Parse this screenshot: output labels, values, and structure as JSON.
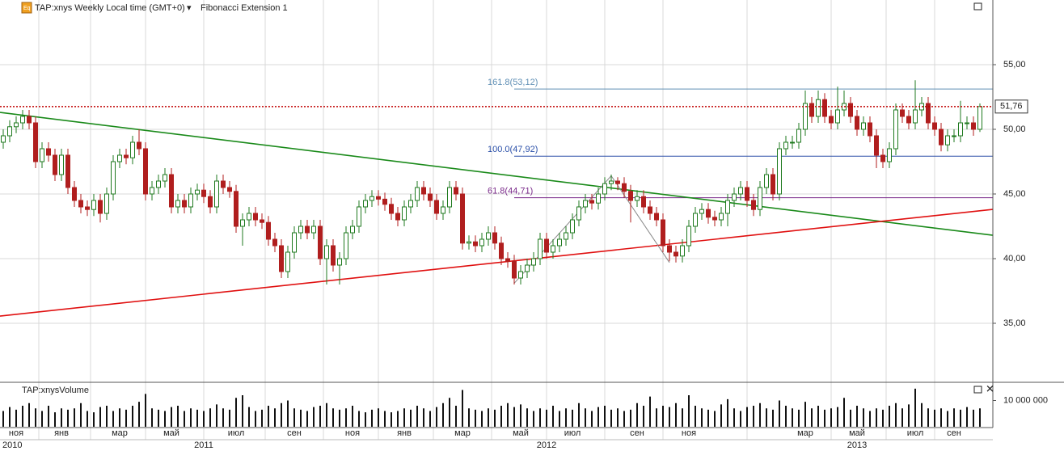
{
  "chart_data": {
    "type": "candlestick",
    "title": "TAP:xnys Weekly Local time (GMT+0)",
    "indicator": "Fibonacci Extension 1",
    "categories": [
      null,
      null,
      "ноя",
      null,
      null,
      null,
      null,
      null,
      null,
      "янв",
      null,
      null,
      null,
      null,
      null,
      null,
      null,
      null,
      "мар",
      null,
      null,
      null,
      null,
      null,
      null,
      null,
      "май",
      null,
      null,
      null,
      null,
      null,
      null,
      null,
      null,
      null,
      "июл",
      null,
      null,
      null,
      null,
      null,
      null,
      null,
      null,
      "сен",
      null,
      null,
      null,
      null,
      null,
      null,
      null,
      null,
      "ноя",
      null,
      null,
      null,
      null,
      null,
      null,
      null,
      "янв",
      null,
      null,
      null,
      null,
      null,
      null,
      null,
      null,
      "мар",
      null,
      null,
      null,
      null,
      null,
      null,
      null,
      null,
      "май",
      null,
      null,
      null,
      null,
      null,
      null,
      null,
      "июл",
      null,
      null,
      null,
      null,
      null,
      null,
      null,
      null,
      null,
      "сен",
      null,
      null,
      null,
      null,
      null,
      null,
      null,
      "ноя",
      null,
      null,
      null,
      null,
      null,
      null,
      null,
      null,
      null,
      null,
      null,
      null,
      null,
      null,
      null,
      null,
      null,
      "мар",
      null,
      null,
      null,
      null,
      null,
      null,
      null,
      "май",
      null,
      null,
      null,
      null,
      null,
      null,
      null,
      null,
      "июл",
      null,
      null,
      null,
      null,
      null,
      "сен",
      null,
      null,
      null,
      null
    ],
    "years": [
      null,
      null,
      "2010",
      null,
      null,
      null,
      null,
      null,
      null,
      null,
      null,
      null,
      null,
      null,
      null,
      null,
      null,
      null,
      null,
      null,
      null,
      null,
      null,
      null,
      null,
      null,
      null,
      null,
      null,
      null,
      null,
      "2011",
      null,
      null,
      null,
      null,
      null,
      null,
      null,
      null,
      null,
      null,
      null,
      null,
      null,
      null,
      null,
      null,
      null,
      null,
      null,
      null,
      null,
      null,
      null,
      null,
      null,
      null,
      null,
      null,
      null,
      null,
      null,
      null,
      null,
      null,
      null,
      null,
      null,
      null,
      null,
      null,
      null,
      null,
      null,
      null,
      null,
      null,
      null,
      null,
      null,
      null,
      null,
      null,
      "2012",
      null,
      null,
      null,
      null,
      null,
      null,
      null,
      null,
      null,
      null,
      null,
      null,
      null,
      null,
      null,
      null,
      null,
      null,
      null,
      null,
      null,
      null,
      null,
      null,
      null,
      null,
      null,
      null,
      null,
      null,
      null,
      null,
      null,
      null,
      null,
      null,
      null,
      null,
      null,
      null,
      null,
      null,
      null,
      null,
      null,
      null,
      null,
      "2013",
      null,
      null,
      null,
      null,
      null,
      null,
      null,
      null,
      null,
      null,
      null,
      null,
      null,
      null,
      null,
      null,
      null,
      null,
      null
    ],
    "open": [
      49,
      49.5,
      50.2,
      50.5,
      51,
      50.5,
      47.5,
      48.5,
      48,
      46.5,
      48,
      45.5,
      44.5,
      44,
      43.8,
      44.5,
      43.5,
      45,
      47.5,
      48,
      47.8,
      49,
      48.5,
      45,
      45.5,
      46,
      46.5,
      44,
      44.5,
      44,
      45,
      45.3,
      44.8,
      44,
      46,
      45.5,
      45.2,
      42.5,
      43,
      43.5,
      43,
      42.8,
      41.5,
      41,
      39,
      40.5,
      42,
      42.5,
      42,
      42.5,
      40,
      41,
      39.5,
      40,
      42,
      42.5,
      44,
      44.5,
      44.8,
      44.6,
      44.2,
      43.5,
      43,
      44,
      44.5,
      45.5,
      45,
      44.5,
      43.5,
      44,
      45.5,
      45,
      41.2,
      41.3,
      41,
      41.5,
      42,
      41.2,
      40,
      39.8,
      38.5,
      39,
      39.5,
      40,
      41.5,
      40.5,
      41,
      41.5,
      42,
      43,
      44,
      44.5,
      44.3,
      45,
      45.8,
      46,
      45.8,
      45.2,
      44.5,
      44.8,
      44,
      43.5,
      43,
      41,
      40.5,
      40.2,
      41,
      42.5,
      43.5,
      43.8,
      43.2,
      43,
      43.5,
      44.5,
      45,
      45.5,
      44.5,
      43.8,
      45.5,
      46.5,
      45,
      48.5,
      49,
      49,
      50,
      52,
      51,
      52.3,
      51,
      50.5,
      51.5,
      52,
      51,
      50,
      50.5,
      49.5,
      48,
      47.5,
      48.5,
      51.5,
      51,
      50.5,
      51.5,
      52,
      50.5,
      50,
      48.8,
      49.5,
      49.5,
      50.5,
      50.5,
      50
    ],
    "high": [
      50,
      50.7,
      51,
      51.5,
      51.5,
      51,
      49,
      49,
      48.5,
      48.5,
      48.5,
      46,
      45,
      44.5,
      45,
      45,
      45.5,
      48,
      48.5,
      48.5,
      49.5,
      50,
      49,
      46,
      46.5,
      47,
      47,
      45,
      45,
      45.5,
      45.8,
      45.8,
      45.3,
      46.5,
      46.5,
      46,
      45.7,
      43.5,
      44,
      44,
      43.5,
      43.3,
      42,
      41.5,
      41,
      42.5,
      43,
      43,
      43,
      43,
      41.5,
      41.5,
      40.5,
      42.5,
      43,
      44.5,
      45,
      45.3,
      45.3,
      45.1,
      44.7,
      44,
      44.5,
      45,
      46,
      46,
      45.5,
      45,
      44.5,
      46,
      46,
      45.5,
      41.8,
      41.8,
      42,
      42.5,
      42.5,
      41.7,
      40.5,
      40.3,
      39.5,
      40,
      40.5,
      42,
      42,
      41.5,
      42,
      42.5,
      43.5,
      44.5,
      45,
      45,
      45.5,
      46.3,
      46.5,
      46.3,
      46.3,
      45.7,
      45.3,
      45.3,
      44.5,
      44,
      43.5,
      41.5,
      41,
      41.5,
      43,
      44,
      44.3,
      44.3,
      43.7,
      44,
      45,
      45.5,
      46,
      46,
      45,
      46,
      47,
      47,
      49,
      49.5,
      49.5,
      50.5,
      53,
      52.5,
      53,
      52.8,
      51.5,
      53.3,
      53,
      52.5,
      51.5,
      51,
      51,
      50,
      48.5,
      49,
      52,
      52,
      51.5,
      53.8,
      52.5,
      52.5,
      51,
      50.5,
      50,
      50,
      52.2,
      51,
      51,
      52
    ],
    "low": [
      48.5,
      49,
      49.7,
      50,
      50,
      47,
      47,
      47.5,
      46,
      46,
      45,
      44,
      43.5,
      43.3,
      43.3,
      42.8,
      43,
      44.5,
      47,
      47.3,
      47.3,
      48,
      44.5,
      44.5,
      45,
      45.5,
      43.5,
      43.5,
      43.5,
      43.5,
      44.5,
      44.3,
      43.5,
      43.5,
      45,
      44.7,
      42,
      41,
      42.5,
      42.5,
      42.3,
      41,
      40.5,
      38.5,
      38.5,
      40,
      41.5,
      41.5,
      41.5,
      39.5,
      38,
      39,
      38,
      39.5,
      41.5,
      42,
      43.5,
      44,
      44.1,
      43.7,
      43,
      42.5,
      42.5,
      43.5,
      44,
      44.5,
      44,
      43,
      43,
      43.5,
      44.5,
      40.7,
      40.7,
      40.5,
      40.5,
      41,
      40.7,
      39.5,
      39.3,
      38,
      38,
      38.5,
      39,
      39.5,
      40,
      40,
      40.5,
      41,
      41.5,
      42.5,
      43.5,
      43.8,
      43.8,
      44.5,
      45.3,
      45.3,
      44.7,
      42.8,
      44,
      43.5,
      43,
      42.5,
      40.5,
      39.8,
      39.7,
      39.7,
      40.5,
      42,
      43,
      42.7,
      42.5,
      42.5,
      42.5,
      44,
      44.5,
      44,
      43.3,
      43.3,
      45,
      44.5,
      44.5,
      48,
      48.5,
      48.5,
      49.5,
      50.5,
      50.5,
      50.5,
      50,
      50,
      51,
      50.5,
      49.5,
      49.5,
      49,
      47,
      47,
      47,
      48,
      50.5,
      50,
      50,
      51,
      50,
      49.5,
      48.3,
      48.3,
      49,
      49,
      50,
      49.5,
      49.8
    ],
    "close": [
      49.5,
      50.2,
      50.5,
      51,
      50.5,
      47.5,
      48.5,
      48,
      46.5,
      48,
      45.5,
      44.5,
      44,
      43.8,
      44.5,
      43.5,
      45,
      47.5,
      48,
      47.8,
      49,
      48.5,
      45,
      45.5,
      46,
      46.5,
      44,
      44.5,
      44,
      45,
      45.3,
      44.8,
      44,
      46,
      45.5,
      45.2,
      42.5,
      43,
      43.5,
      43,
      42.8,
      41.5,
      41,
      39,
      40.5,
      42,
      42.5,
      42,
      42.5,
      40,
      41,
      39.5,
      40,
      42,
      42.5,
      44,
      44.5,
      44.8,
      44.6,
      44.2,
      43.5,
      43,
      44,
      44.5,
      45.5,
      45,
      44.5,
      43.5,
      44,
      45.5,
      45,
      41.2,
      41.3,
      41,
      41.5,
      42,
      41.2,
      40,
      39.8,
      38.5,
      39,
      39.5,
      40,
      41.5,
      40.5,
      41,
      41.5,
      42,
      43,
      44,
      44.5,
      44.3,
      45,
      45.8,
      46,
      45.8,
      45.2,
      44.5,
      44.8,
      44,
      43.5,
      43,
      41,
      40.5,
      40.2,
      41,
      42.5,
      43.5,
      43.8,
      43.2,
      43,
      43.5,
      44.5,
      45,
      45.5,
      44.5,
      43.8,
      45.5,
      46.5,
      45,
      48.5,
      49,
      49,
      50,
      52,
      51,
      52.3,
      51,
      50.5,
      51.5,
      52,
      51,
      50,
      50.5,
      49.5,
      48,
      47.5,
      48.5,
      51.5,
      51,
      50.5,
      51.5,
      52,
      50.5,
      50,
      48.8,
      49.5,
      49.5,
      50.5,
      50.5,
      50,
      51.76
    ],
    "up_color": "#1f7a1f",
    "down_color": "#b01e1e",
    "ylim": [
      30.5,
      60
    ],
    "yticks": [
      {
        "value": 35,
        "label": "35,00"
      },
      {
        "value": 40,
        "label": "40,00"
      },
      {
        "value": 45,
        "label": "45,00"
      },
      {
        "value": 50,
        "label": "50,00"
      },
      {
        "value": 55,
        "label": "55,00"
      }
    ],
    "grid": true,
    "last_price": {
      "value": 51.76,
      "label": "51,76",
      "color": "#c00000"
    },
    "trendlines": [
      {
        "color": "#1a8a1a",
        "values": [
          51.31,
          41.81
        ]
      },
      {
        "color": "#e01010",
        "values": [
          35.56,
          43.81
        ]
      }
    ],
    "zigzag": {
      "color": "#888888",
      "x": [
        79,
        94,
        103
      ],
      "values": [
        38.1,
        46.4,
        39.7
      ]
    },
    "fibonacci": [
      {
        "label": "161.8(53,12)",
        "value": 53.12,
        "color": "#5f8fb5"
      },
      {
        "label": "100.0(47,92)",
        "value": 47.92,
        "color": "#2a4fa8"
      },
      {
        "label": "61.8(44,71)",
        "value": 44.71,
        "color": "#7a2a8a"
      }
    ],
    "volume": {
      "title": "TAP:xnysVolume",
      "color": "#111111",
      "ylim": [
        0,
        16000000
      ],
      "yticks": [
        {
          "value": 10000000,
          "label": "10 000 000"
        }
      ],
      "values": [
        6000000,
        7500000,
        6500000,
        8000000,
        9000000,
        7000000,
        6000000,
        8000000,
        5500000,
        7000000,
        6500000,
        7000000,
        9000000,
        6000000,
        5500000,
        7500000,
        8000000,
        6000000,
        7000000,
        6500000,
        8000000,
        9500000,
        12500000,
        7000000,
        6500000,
        6000000,
        7500000,
        8000000,
        6000000,
        7000000,
        6500000,
        6000000,
        7000000,
        8500000,
        7000000,
        6500000,
        11000000,
        12000000,
        7500000,
        6000000,
        6500000,
        8000000,
        7000000,
        9000000,
        10000000,
        7000000,
        6500000,
        6000000,
        7500000,
        8000000,
        9000000,
        7000000,
        6500000,
        7000000,
        8000000,
        6000000,
        5500000,
        6500000,
        7000000,
        6000000,
        5500000,
        6000000,
        7000000,
        6500000,
        8000000,
        7000000,
        6000000,
        7500000,
        9000000,
        11000000,
        8000000,
        14000000,
        7000000,
        6500000,
        6000000,
        7000000,
        6500000,
        8000000,
        9000000,
        7500000,
        8500000,
        7000000,
        6000000,
        7000000,
        6500000,
        8000000,
        6000000,
        7000000,
        6500000,
        9000000,
        7000000,
        6000000,
        7500000,
        8000000,
        6500000,
        7000000,
        6000000,
        6500000,
        9000000,
        8000000,
        11500000,
        7000000,
        8000000,
        7500000,
        9000000,
        7000000,
        12000000,
        8000000,
        7000000,
        6500000,
        6000000,
        8500000,
        10500000,
        7000000,
        6000000,
        7500000,
        8000000,
        9000000,
        7000000,
        6500000,
        10000000,
        8000000,
        7000000,
        6500000,
        9500000,
        7000000,
        8000000,
        6500000,
        7000000,
        7500000,
        11000000,
        6500000,
        8000000,
        7000000,
        6000000,
        7000000,
        6500000,
        8000000,
        9000000,
        7000000,
        8500000,
        14500000,
        9000000,
        7000000,
        6500000,
        7000000,
        6000000,
        7000000,
        6500000,
        7500000,
        6500000,
        7000000
      ]
    }
  }
}
